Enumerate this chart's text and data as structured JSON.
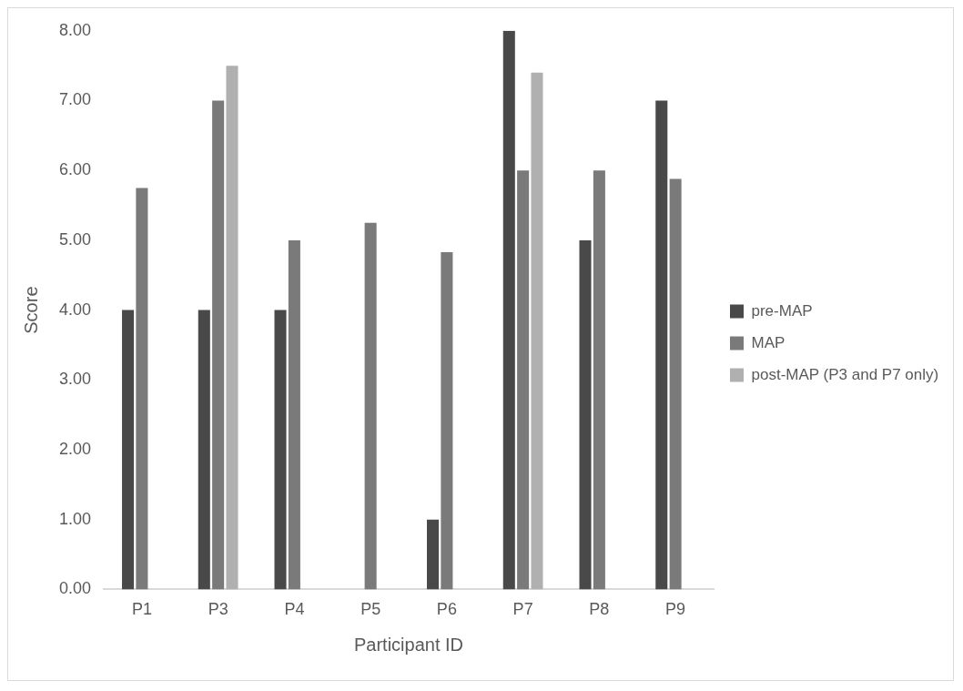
{
  "chart_data": {
    "type": "bar",
    "xlabel": "Participant ID",
    "ylabel": "Score",
    "categories": [
      "P1",
      "P3",
      "P4",
      "P5",
      "P6",
      "P7",
      "P8",
      "P9"
    ],
    "series": [
      {
        "name": "pre-MAP",
        "color": "#494949",
        "values": [
          4,
          4,
          4,
          null,
          1,
          8,
          5,
          7
        ]
      },
      {
        "name": "MAP",
        "color": "#7a7a7a",
        "values": [
          5.75,
          7,
          5,
          5.25,
          4.83,
          6,
          6,
          5.88
        ]
      },
      {
        "name": "post-MAP (P3 and P7 only)",
        "color": "#b0b0b0",
        "values": [
          null,
          7.5,
          null,
          null,
          null,
          7.4,
          null,
          null
        ]
      }
    ],
    "ylim": [
      0,
      8
    ],
    "yticks": [
      {
        "value": 0,
        "label": "0.00"
      },
      {
        "value": 1,
        "label": "1.00"
      },
      {
        "value": 2,
        "label": "2.00"
      },
      {
        "value": 3,
        "label": "3.00"
      },
      {
        "value": 4,
        "label": "4.00"
      },
      {
        "value": 5,
        "label": "5.00"
      },
      {
        "value": 6,
        "label": "6.00"
      },
      {
        "value": 7,
        "label": "7.00"
      },
      {
        "value": 8,
        "label": "8.00"
      }
    ],
    "grid": false,
    "legend": "right"
  }
}
